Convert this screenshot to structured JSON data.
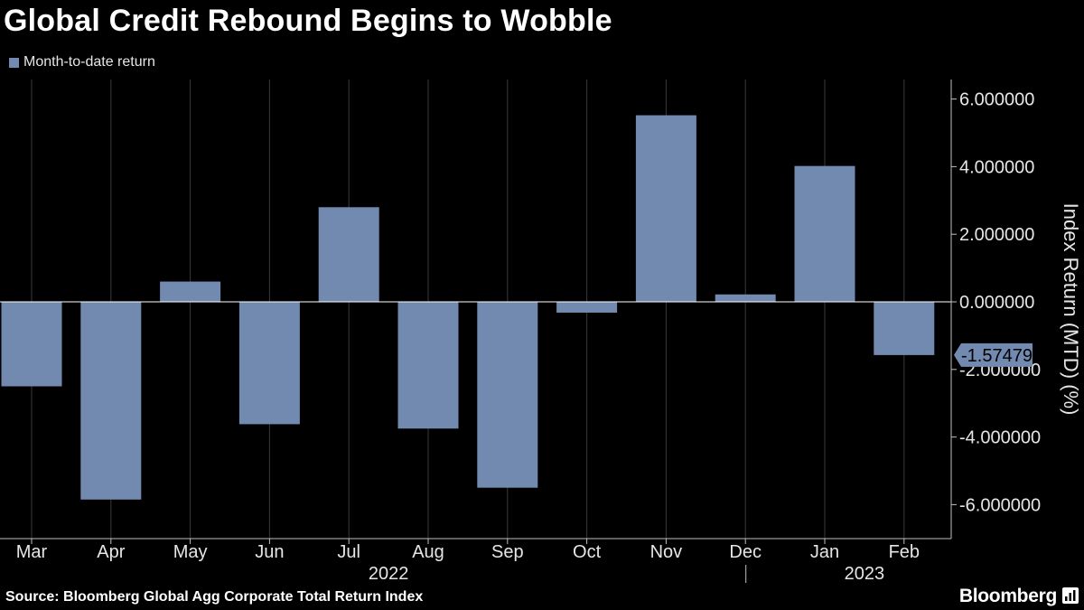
{
  "title": "Global Credit Rebound Begins to Wobble",
  "legend": {
    "label": "Month-to-date return"
  },
  "source": "Source: Bloomberg Global Agg Corporate Total Return Index",
  "brand": "Bloomberg",
  "colors": {
    "bar": "#7289b0",
    "grid": "#3a3a3a",
    "background": "#000000",
    "text": "#e6e6e6"
  },
  "chart_data": {
    "type": "bar",
    "title": "Global Credit Rebound Begins to Wobble",
    "categories": [
      "Mar",
      "Apr",
      "May",
      "Jun",
      "Jul",
      "Aug",
      "Sep",
      "Oct",
      "Nov",
      "Dec",
      "Jan",
      "Feb"
    ],
    "series": [
      {
        "name": "Month-to-date return",
        "values": [
          -2.5,
          -5.85,
          0.6,
          -3.62,
          2.8,
          -3.75,
          -5.5,
          -0.32,
          5.52,
          0.22,
          4.02,
          -1.574792
        ]
      }
    ],
    "year_labels": [
      {
        "label": "2022",
        "categories": [
          "Mar",
          "Apr",
          "May",
          "Jun",
          "Jul",
          "Aug",
          "Sep",
          "Oct",
          "Nov",
          "Dec"
        ]
      },
      {
        "label": "2023",
        "categories": [
          "Jan",
          "Feb"
        ]
      }
    ],
    "ylabel": "Index Return (MTD) (%)",
    "ylim": [
      -7,
      6.5
    ],
    "yticks": [
      6,
      4,
      2,
      0,
      -2,
      -4,
      -6
    ],
    "ytick_labels": [
      "6.000000",
      "4.000000",
      "2.000000",
      "0.000000",
      "-2.000000",
      "-4.000000",
      "-6.000000"
    ],
    "last_value_label": "-1.574792",
    "grid": true,
    "axis_position": "right"
  }
}
